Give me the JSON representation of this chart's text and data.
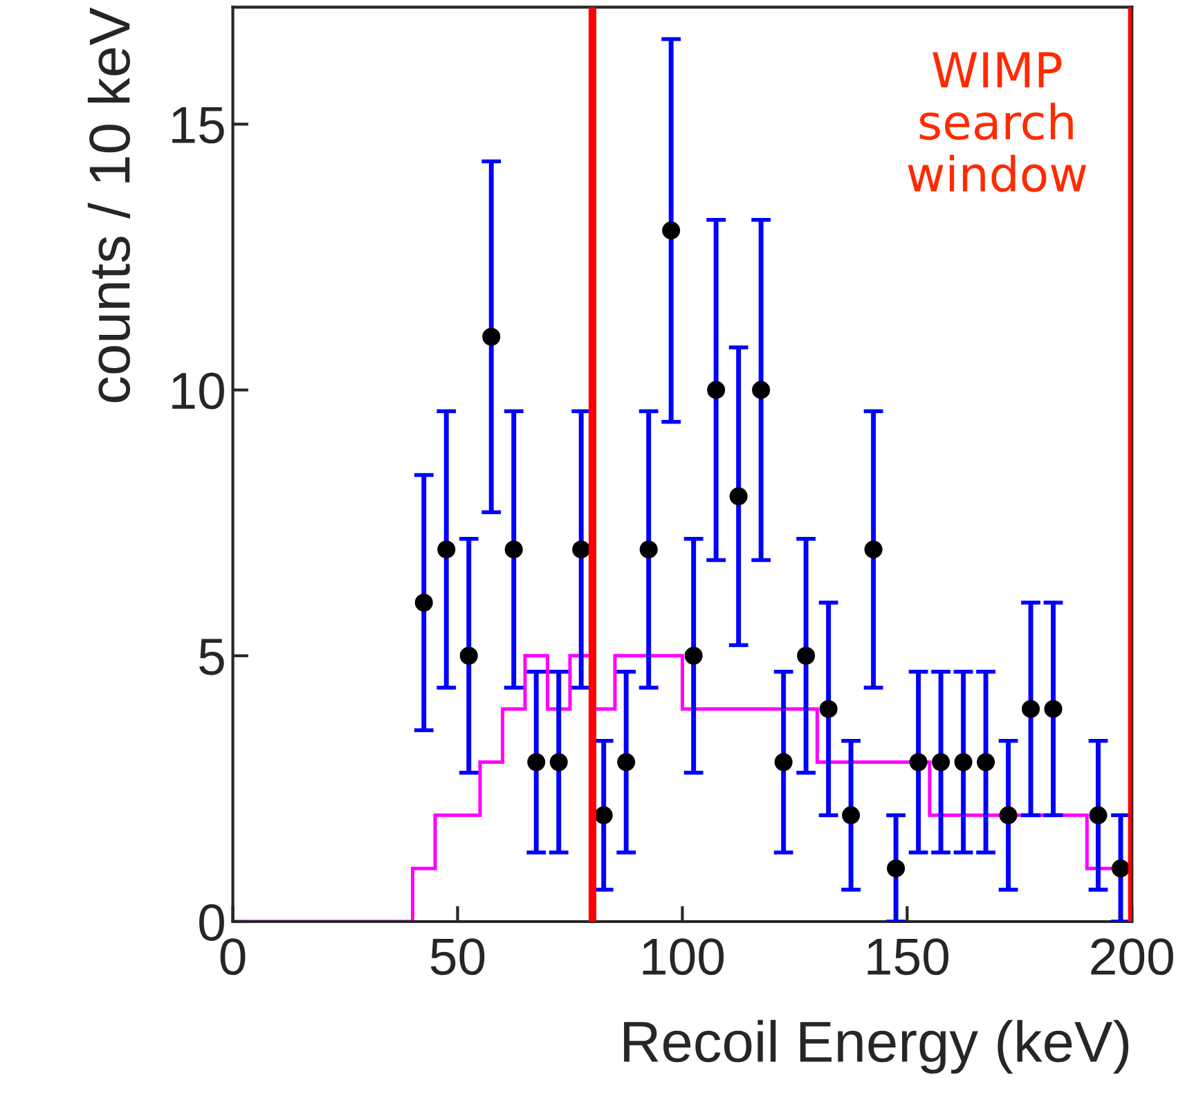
{
  "chart_data": {
    "type": "histogram",
    "xlabel": "Recoil Energy (keV)",
    "ylabel": "counts / 10 keV",
    "xlim": [
      0,
      200
    ],
    "ylim": [
      0,
      17.2
    ],
    "xticks": [
      0,
      50,
      100,
      150,
      200
    ],
    "yticks": [
      0,
      5,
      10,
      15
    ],
    "color": "#ff00ff",
    "grid": false,
    "legend": false,
    "bins": [
      0,
      40,
      45,
      55,
      60,
      65,
      70,
      75,
      80,
      85,
      100,
      130,
      155,
      190,
      200
    ],
    "values": [
      0,
      1,
      2,
      3,
      4,
      5,
      4,
      5,
      4,
      5,
      4,
      3,
      2,
      1
    ],
    "series": [
      {
        "type": "scatter",
        "color": "#000000",
        "marker": "circle",
        "x": [
          42.5,
          47.5,
          52.5,
          57.5,
          62.5,
          67.5,
          72.5,
          77.5,
          82.5,
          87.5,
          92.5,
          97.5,
          102.5,
          107.5,
          112.5,
          117.5,
          122.5,
          127.5,
          132.5,
          137.5,
          142.5,
          147.5,
          152.5,
          157.5,
          162.5,
          167.5,
          172.5,
          177.5,
          182.5,
          187.5,
          192.5,
          197.5
        ],
        "values": [
          6,
          7,
          5,
          11,
          7,
          3,
          3,
          7,
          2,
          3,
          7,
          13,
          5,
          10,
          8,
          10,
          3,
          5,
          4,
          2,
          7,
          1,
          3,
          3,
          3,
          3,
          2,
          4,
          4,
          null,
          2,
          1
        ],
        "errors": [
          2.4,
          2.6,
          2.2,
          3.3,
          2.6,
          1.7,
          1.7,
          2.6,
          1.4,
          1.7,
          2.6,
          3.6,
          2.2,
          3.2,
          2.8,
          3.2,
          1.7,
          2.2,
          2,
          1.4,
          2.6,
          1,
          1.7,
          1.7,
          1.7,
          1.7,
          1.4,
          2,
          2,
          null,
          1.4,
          1
        ]
      }
    ],
    "ref_lines": [
      {
        "axis": "x",
        "value": 80,
        "color": "#ff0000"
      },
      {
        "axis": "x",
        "value": 200,
        "color": "#ff0000"
      }
    ],
    "annotations": [
      "WIMP\nsearch\nwindow"
    ]
  }
}
